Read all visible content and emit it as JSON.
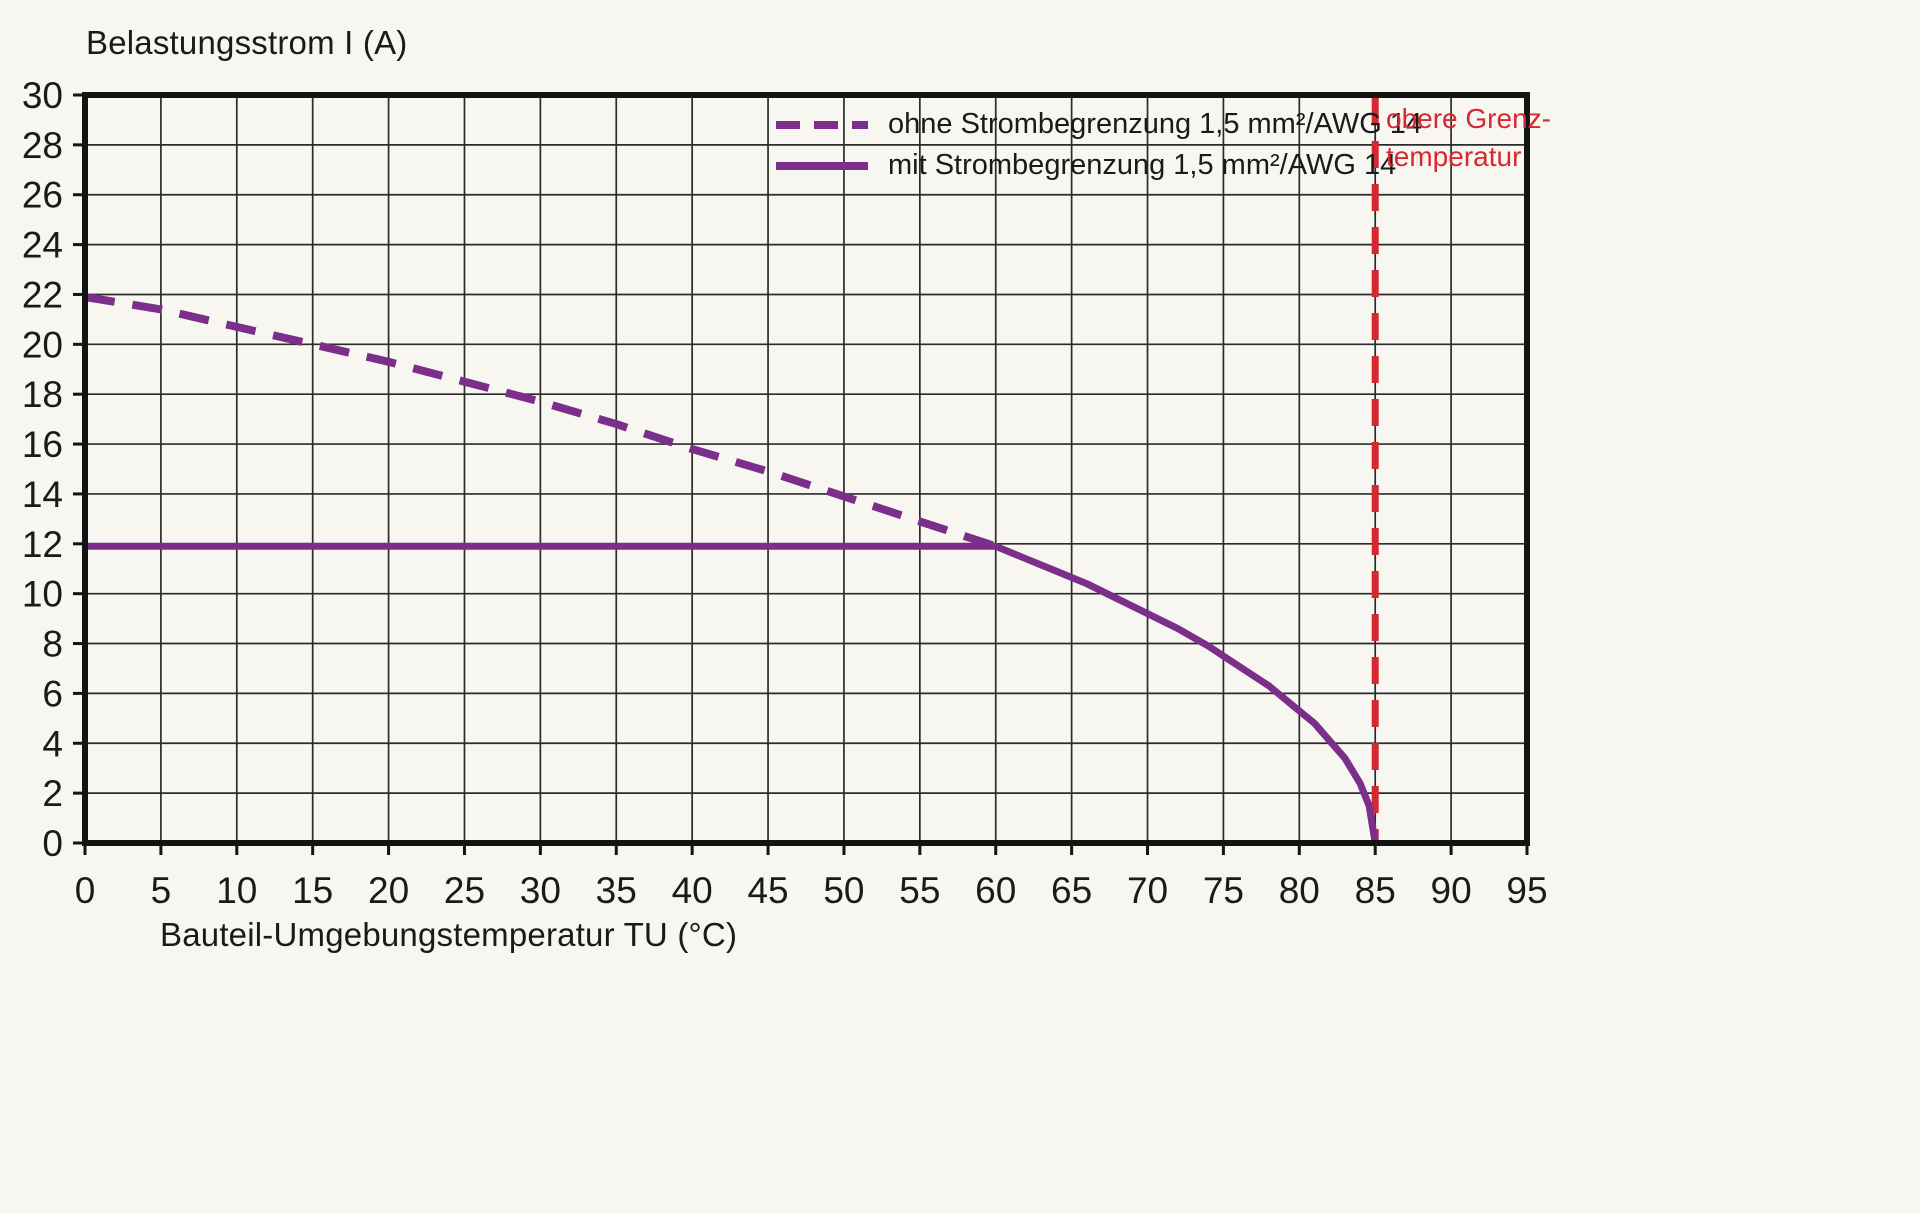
{
  "colors": {
    "background": "#f8f6f1",
    "curve": "#7b2f8a",
    "limit": "#d7282f",
    "grid": "#2b2b2b",
    "frame": "#141414",
    "text": "#1a1a1a"
  },
  "chart_data": {
    "type": "line",
    "title": "",
    "xlabel": "Bauteil-Umgebungstemperatur TU (°C)",
    "ylabel": "Belastungsstrom I (A)",
    "xlim": [
      0,
      95
    ],
    "ylim": [
      0,
      30
    ],
    "x_ticks": [
      0,
      5,
      10,
      15,
      20,
      25,
      30,
      35,
      40,
      45,
      50,
      55,
      60,
      65,
      70,
      75,
      80,
      85,
      90,
      95
    ],
    "y_ticks": [
      0,
      2,
      4,
      6,
      8,
      10,
      12,
      14,
      16,
      18,
      20,
      22,
      24,
      26,
      28,
      30
    ],
    "grid": true,
    "legend_position": "top-right",
    "series": [
      {
        "name": "ohne Strombegrenzung 1,5 mm²/AWG 14",
        "style": "dashed",
        "color": "#7b2f8a",
        "points": [
          [
            0,
            21.9
          ],
          [
            5,
            21.4
          ],
          [
            10,
            20.7
          ],
          [
            15,
            20.0
          ],
          [
            20,
            19.3
          ],
          [
            25,
            18.5
          ],
          [
            30,
            17.7
          ],
          [
            35,
            16.8
          ],
          [
            40,
            15.8
          ],
          [
            45,
            14.9
          ],
          [
            50,
            13.9
          ],
          [
            55,
            12.9
          ],
          [
            60,
            11.9
          ]
        ]
      },
      {
        "name": "mit Strombegrenzung 1,5 mm²/AWG 14",
        "style": "solid",
        "color": "#7b2f8a",
        "points": [
          [
            0,
            11.9
          ],
          [
            60,
            11.9
          ],
          [
            62,
            11.4
          ],
          [
            64,
            10.9
          ],
          [
            66,
            10.4
          ],
          [
            68,
            9.8
          ],
          [
            70,
            9.2
          ],
          [
            72,
            8.6
          ],
          [
            74,
            7.9
          ],
          [
            76,
            7.1
          ],
          [
            78,
            6.3
          ],
          [
            80,
            5.3
          ],
          [
            81,
            4.8
          ],
          [
            82,
            4.1
          ],
          [
            83,
            3.4
          ],
          [
            84,
            2.4
          ],
          [
            84.6,
            1.5
          ],
          [
            85,
            0
          ]
        ]
      }
    ],
    "limit_line": {
      "x": 85,
      "style": "dashed",
      "color": "#d7282f",
      "label_line1": "obere Grenz-",
      "label_line2": "temperatur"
    }
  }
}
